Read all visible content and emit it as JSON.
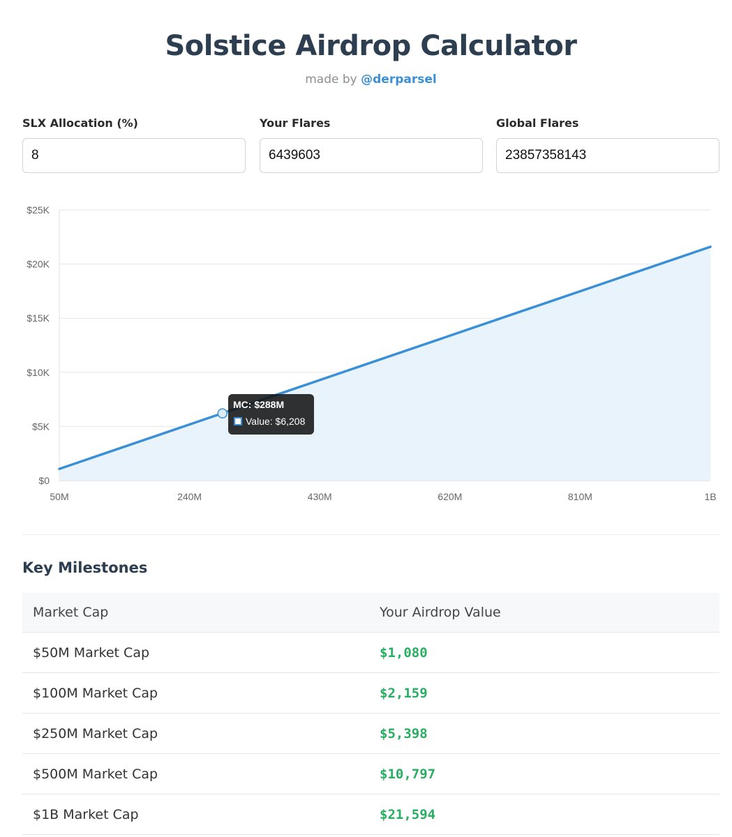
{
  "header": {
    "title": "Solstice Airdrop Calculator",
    "made_by_prefix": "made by",
    "author_handle": "@derparsel"
  },
  "inputs": [
    {
      "label": "SLX Allocation (%)",
      "value": "8"
    },
    {
      "label": "Your Flares",
      "value": "6439603"
    },
    {
      "label": "Global Flares",
      "value": "23857358143"
    }
  ],
  "chart_data": {
    "type": "area",
    "x": [
      50,
      1000
    ],
    "y": [
      1080,
      21594
    ],
    "x_unit": "market cap ($M)",
    "xlim": [
      50,
      1000
    ],
    "ylim": [
      0,
      25000
    ],
    "x_tick_labels": [
      "50M",
      "240M",
      "430M",
      "620M",
      "810M",
      "1B"
    ],
    "y_tick_labels": [
      "$0",
      "$5K",
      "$10K",
      "$15K",
      "$20K",
      "$25K"
    ],
    "grid": true,
    "line_color": "#3a8fd6",
    "fill_color": "#e8f3fb",
    "highlighted_point": {
      "x": 288,
      "y": 6208
    },
    "tooltip": {
      "title": "MC: $288M",
      "line": "Value: $6,208"
    }
  },
  "milestones": {
    "title": "Key Milestones",
    "columns": [
      "Market Cap",
      "Your Airdrop Value"
    ],
    "rows": [
      {
        "market_cap": "$50M Market Cap",
        "value": "$1,080"
      },
      {
        "market_cap": "$100M Market Cap",
        "value": "$2,159"
      },
      {
        "market_cap": "$250M Market Cap",
        "value": "$5,398"
      },
      {
        "market_cap": "$500M Market Cap",
        "value": "$10,797"
      },
      {
        "market_cap": "$1B Market Cap",
        "value": "$21,594"
      }
    ]
  }
}
